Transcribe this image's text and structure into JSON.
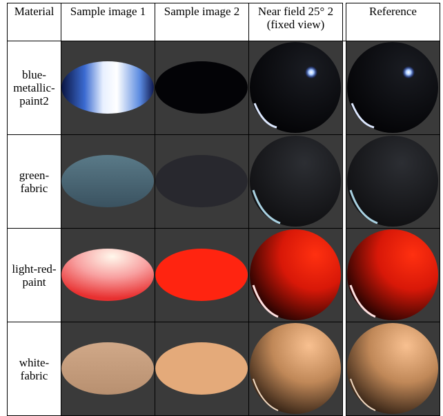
{
  "table": {
    "header": [
      "Material",
      "Sample image 1",
      "Sample image 2",
      "Near field 25° 2 (fixed view)",
      "Reference"
    ],
    "rows": [
      [
        "blue-metallic-paint2"
      ],
      [
        "green-fabric"
      ],
      [
        "light-red-paint"
      ],
      [
        "white-fabric"
      ]
    ]
  }
}
